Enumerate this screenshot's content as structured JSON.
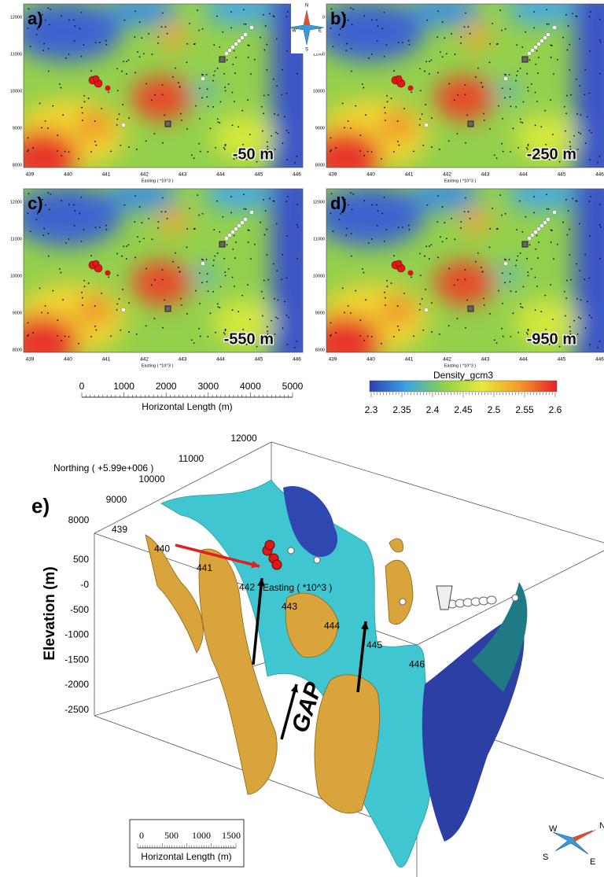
{
  "panels": [
    {
      "label": "a)",
      "depth": "-50 m"
    },
    {
      "label": "b)",
      "depth": "-250 m"
    },
    {
      "label": "c)",
      "depth": "-550 m"
    },
    {
      "label": "d)",
      "depth": "-950 m"
    }
  ],
  "map_axis": {
    "x_ticks": [
      "439",
      "440",
      "441",
      "442",
      "443",
      "444",
      "445",
      "446"
    ],
    "x_title": "Easting ( *10^3 )",
    "y_ticks": [
      "8000",
      "9000",
      "10000",
      "11000",
      "12000"
    ]
  },
  "compass": {
    "n": "N",
    "s": "S",
    "w": "W",
    "e": "E"
  },
  "scale_bar": {
    "ticks": [
      "0",
      "1000",
      "2000",
      "3000",
      "4000",
      "5000"
    ],
    "title": "Horizontal Length (m)"
  },
  "colorbar": {
    "title": "Density_gcm3",
    "ticks": [
      "2.3",
      "2.35",
      "2.4",
      "2.45",
      "2.5",
      "2.55",
      "2.6"
    ]
  },
  "panel_e": {
    "label": "e)",
    "northing_title": "Northing ( +5.99e+006 )",
    "northing_ticks": [
      "8000",
      "9000",
      "10000",
      "11000",
      "12000"
    ],
    "easting_ticks": [
      "439",
      "440",
      "441",
      "442",
      "443",
      "444",
      "445",
      "446"
    ],
    "easting_title": "Easting ( *10^3 )",
    "elevation_title": "Elevation (m)",
    "elevation_ticks": [
      "500",
      "-0",
      "-500",
      "-1000",
      "-1500",
      "-2000",
      "-2500"
    ],
    "gap_label": "GAP",
    "scale_bar": {
      "ticks": [
        "0",
        "500",
        "1000",
        "1500"
      ],
      "title": "Horizontal Length (m)"
    },
    "compass": {
      "w": "W",
      "n": "N",
      "s": "S",
      "e": "E"
    }
  }
}
